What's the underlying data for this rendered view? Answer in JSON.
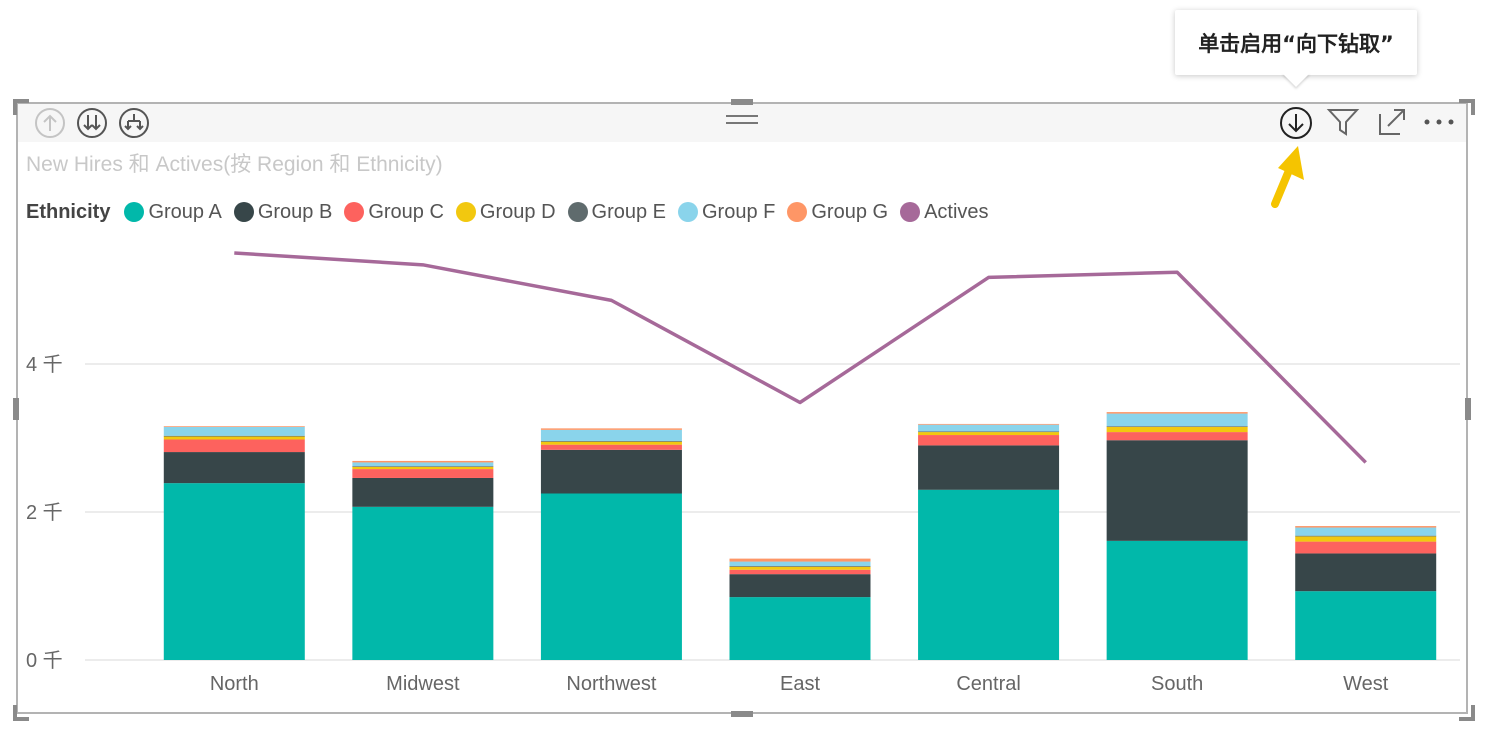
{
  "tooltip": {
    "text": "单击启用“向下钻取”"
  },
  "header_icons": {
    "drill_up": "arrow-up-circle-icon",
    "drill_down_all": "double-arrow-down-circle-icon",
    "expand_next": "expand-down-circle-icon",
    "move_handle": "drag-handle-icon",
    "drill_mode": "arrow-down-circle-icon",
    "filter": "filter-icon",
    "focus": "focus-mode-icon",
    "more": "more-options-icon",
    "pointer": "yellow-arrow-pointer-icon"
  },
  "chart_data": {
    "type": "bar",
    "stacked": true,
    "title": "New Hires 和 Actives(按 Region 和 Ethnicity)",
    "legend_title": "Ethnicity",
    "legend_position": "top-left",
    "grid": true,
    "categories": [
      "North",
      "Midwest",
      "Northwest",
      "East",
      "Central",
      "South",
      "West"
    ],
    "y_ticks": [
      "0 千",
      "2 千",
      "4 千"
    ],
    "y_tick_values": [
      0,
      2000,
      4000
    ],
    "ylim": [
      0,
      6000
    ],
    "series": [
      {
        "name": "Group A",
        "color": "#01b8aa",
        "values": [
          2390,
          2070,
          2250,
          850,
          2300,
          1610,
          930
        ]
      },
      {
        "name": "Group B",
        "color": "#374649",
        "values": [
          420,
          390,
          590,
          310,
          600,
          1360,
          510
        ]
      },
      {
        "name": "Group C",
        "color": "#fd625e",
        "values": [
          170,
          120,
          70,
          60,
          140,
          110,
          160
        ]
      },
      {
        "name": "Group D",
        "color": "#f2c80f",
        "values": [
          40,
          30,
          40,
          40,
          40,
          70,
          70
        ]
      },
      {
        "name": "Group E",
        "color": "#5f6b6d",
        "values": [
          10,
          10,
          10,
          10,
          10,
          10,
          10
        ]
      },
      {
        "name": "Group F",
        "color": "#8ad4eb",
        "values": [
          120,
          50,
          150,
          60,
          90,
          170,
          110
        ]
      },
      {
        "name": "Group G",
        "color": "#fe9666",
        "values": [
          10,
          20,
          20,
          40,
          10,
          20,
          20
        ]
      }
    ],
    "line_series": {
      "name": "Actives",
      "color": "#a66999",
      "values": [
        5500,
        5340,
        4860,
        3480,
        5170,
        5240,
        2670
      ]
    }
  }
}
